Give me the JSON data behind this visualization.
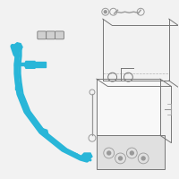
{
  "bg_color": "#f2f2f2",
  "cable_color": "#29b6d8",
  "gray_line": "#999999",
  "gray_dark": "#777777",
  "gray_fill": "#e0e0e0",
  "white_fill": "#f8f8f8",
  "figsize": [
    2.0,
    2.0
  ],
  "dpi": 100,
  "cable_lw": 4.0
}
